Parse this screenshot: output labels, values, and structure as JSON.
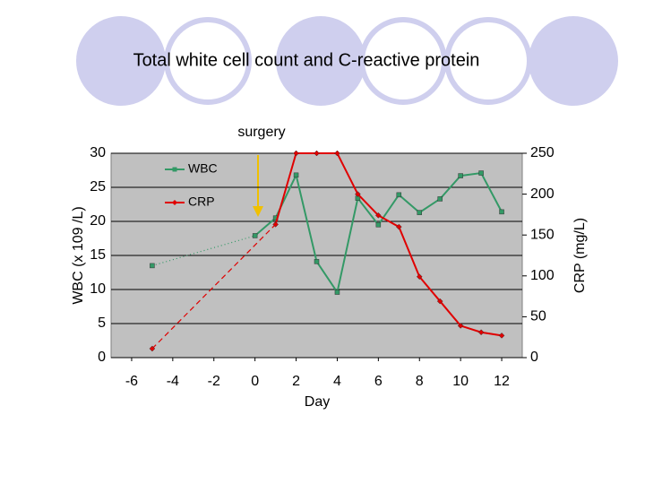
{
  "chart_data": {
    "type": "line",
    "title": "Total white cell count and C-reactive protein",
    "annotation": "surgery",
    "x_label": "Day",
    "y_label": "WBC (x 109 /L)",
    "y2_label": "CRP  (mg/L)",
    "xlim": [
      -7,
      13
    ],
    "xticks": [
      -6,
      -4,
      -2,
      0,
      2,
      4,
      6,
      8,
      10,
      12
    ],
    "ylim": [
      0,
      30
    ],
    "yticks": [
      0,
      5,
      10,
      15,
      20,
      25,
      30
    ],
    "y2lim": [
      0,
      250
    ],
    "y2ticks": [
      0,
      50,
      100,
      150,
      200,
      250
    ],
    "grid": true,
    "legend": "upper left",
    "x": [
      -5,
      0,
      1,
      2,
      3,
      4,
      5,
      6,
      7,
      8,
      9,
      10,
      11,
      12
    ],
    "series": [
      {
        "name": "WBC",
        "color": "#339966",
        "values": [
          13.5,
          17.9,
          20.5,
          26.8,
          14.1,
          9.6,
          23.4,
          19.5,
          23.9,
          21.3,
          23.3,
          26.7,
          27.1,
          21.4
        ]
      },
      {
        "name": "CRP",
        "color": "#e00000",
        "axis": "y2",
        "values": [
          11,
          null,
          163,
          250,
          250,
          250,
          200,
          174,
          160,
          99,
          69,
          39,
          31,
          27
        ]
      }
    ]
  }
}
